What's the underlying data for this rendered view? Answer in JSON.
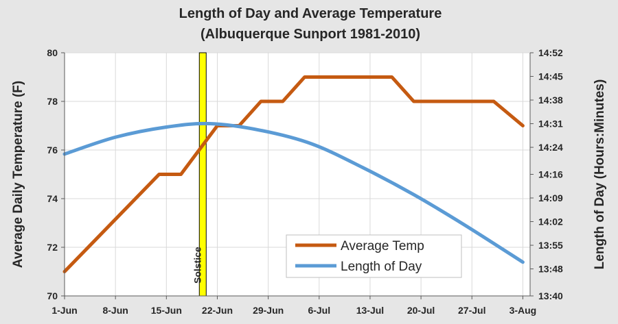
{
  "chart_data": {
    "type": "line",
    "title": "Length of Day and Average Temperature",
    "subtitle": "(Albuquerque Sunport 1981-2010)",
    "ylabel": "Average Daily Temperature (F)",
    "y2label": "Length of Day (Hours:Minutes)",
    "x_ticks": [
      "1-Jun",
      "8-Jun",
      "15-Jun",
      "22-Jun",
      "29-Jun",
      "6-Jul",
      "13-Jul",
      "20-Jul",
      "27-Jul",
      "3-Aug"
    ],
    "x_range_days": [
      1,
      65
    ],
    "ylim": [
      70,
      80
    ],
    "y_ticks": [
      70,
      72,
      74,
      76,
      78,
      80
    ],
    "y2_ticks": [
      "13:40",
      "13:48",
      "13:55",
      "14:02",
      "14:09",
      "14:16",
      "14:24",
      "14:31",
      "14:38",
      "14:45",
      "14:52"
    ],
    "grid": true,
    "legend_position": "bottom-right",
    "annotation": {
      "label": "Solstice",
      "x_date": "20-Jun",
      "color": "#ffff00"
    },
    "series": [
      {
        "name": "Average Temp",
        "axis": "left",
        "color": "#c55a11",
        "points": [
          [
            "1-Jun",
            71
          ],
          [
            "14-Jun",
            75
          ],
          [
            "17-Jun",
            75
          ],
          [
            "22-Jun",
            77
          ],
          [
            "25-Jun",
            77
          ],
          [
            "28-Jun",
            78
          ],
          [
            "1-Jul",
            78
          ],
          [
            "4-Jul",
            79
          ],
          [
            "16-Jul",
            79
          ],
          [
            "19-Jul",
            78
          ],
          [
            "30-Jul",
            78
          ],
          [
            "3-Aug",
            77
          ]
        ]
      },
      {
        "name": "Length of Day",
        "axis": "right",
        "color": "#5b9bd5",
        "points": [
          [
            "1-Jun",
            "14:22"
          ],
          [
            "8-Jun",
            "14:27"
          ],
          [
            "15-Jun",
            "14:30"
          ],
          [
            "21-Jun",
            "14:31"
          ],
          [
            "28-Jun",
            "14:29"
          ],
          [
            "5-Jul",
            "14:25"
          ],
          [
            "12-Jul",
            "14:18"
          ],
          [
            "19-Jul",
            "14:10"
          ],
          [
            "26-Jul",
            "14:01"
          ],
          [
            "3-Aug",
            "13:50"
          ]
        ]
      }
    ]
  }
}
